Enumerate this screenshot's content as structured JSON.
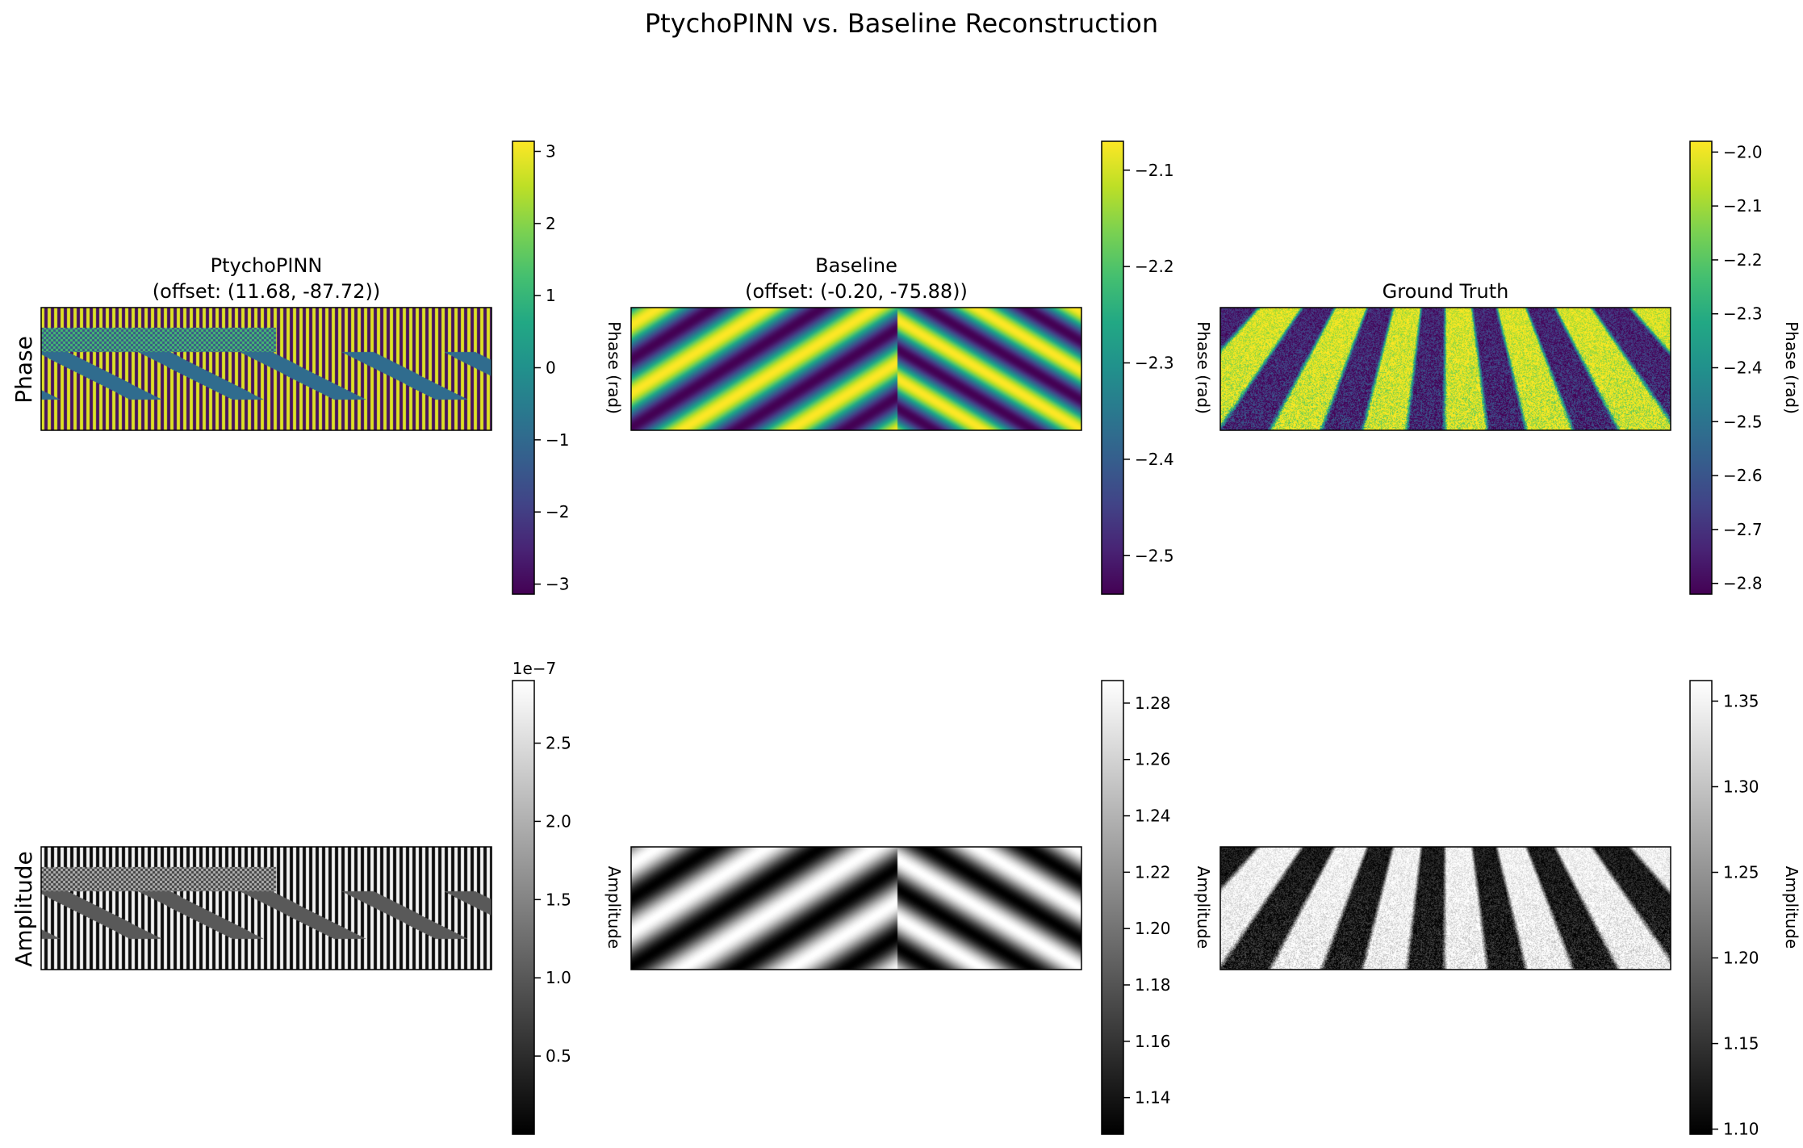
{
  "suptitle": "PtychoPINN vs. Baseline Reconstruction",
  "row_labels": [
    "Phase",
    "Amplitude"
  ],
  "chart_data": [
    {
      "type": "heatmap",
      "panel": "phase-ptychopinn",
      "title": "PtychoPINN",
      "subtitle": "(offset: (11.68, -87.72))",
      "colormap": "viridis",
      "colorbar_label": "Phase (rad)",
      "range": [
        -3.14,
        3.14
      ],
      "ticks": [
        -3,
        -2,
        -1,
        0,
        1,
        2,
        3
      ],
      "tick_labels": [
        "−3",
        "−2",
        "−1",
        "0",
        "1",
        "2",
        "3"
      ],
      "offset_label": "",
      "pattern": "ptycho"
    },
    {
      "type": "heatmap",
      "panel": "phase-baseline",
      "title": "Baseline",
      "subtitle": "(offset: (-0.20, -75.88))",
      "colormap": "viridis",
      "colorbar_label": "Phase (rad)",
      "range": [
        -2.54,
        -2.07
      ],
      "ticks": [
        -2.5,
        -2.4,
        -2.3,
        -2.2,
        -2.1
      ],
      "tick_labels": [
        "−2.5",
        "−2.4",
        "−2.3",
        "−2.2",
        "−2.1"
      ],
      "offset_label": "",
      "pattern": "baseline"
    },
    {
      "type": "heatmap",
      "panel": "phase-ground-truth",
      "title": "Ground Truth",
      "subtitle": "",
      "colormap": "viridis",
      "colorbar_label": "Phase (rad)",
      "range": [
        -2.82,
        -1.98
      ],
      "ticks": [
        -2.8,
        -2.7,
        -2.6,
        -2.5,
        -2.4,
        -2.3,
        -2.2,
        -2.1,
        -2.0
      ],
      "tick_labels": [
        "−2.8",
        "−2.7",
        "−2.6",
        "−2.5",
        "−2.4",
        "−2.3",
        "−2.2",
        "−2.1",
        "−2.0"
      ],
      "offset_label": "",
      "pattern": "truth"
    },
    {
      "type": "heatmap",
      "panel": "amplitude-ptychopinn",
      "title": "",
      "subtitle": "",
      "colormap": "gray",
      "colorbar_label": "Amplitude",
      "range": [
        0.0,
        2.9
      ],
      "ticks": [
        0.5,
        1.0,
        1.5,
        2.0,
        2.5
      ],
      "tick_labels": [
        "0.5",
        "1.0",
        "1.5",
        "2.0",
        "2.5"
      ],
      "offset_label": "1e−7",
      "pattern": "ptycho"
    },
    {
      "type": "heatmap",
      "panel": "amplitude-baseline",
      "title": "",
      "subtitle": "",
      "colormap": "gray",
      "colorbar_label": "Amplitude",
      "range": [
        1.127,
        1.288
      ],
      "ticks": [
        1.14,
        1.16,
        1.18,
        1.2,
        1.22,
        1.24,
        1.26,
        1.28
      ],
      "tick_labels": [
        "1.14",
        "1.16",
        "1.18",
        "1.20",
        "1.22",
        "1.24",
        "1.26",
        "1.28"
      ],
      "offset_label": "",
      "pattern": "baseline"
    },
    {
      "type": "heatmap",
      "panel": "amplitude-ground-truth",
      "title": "",
      "subtitle": "",
      "colormap": "gray",
      "colorbar_label": "Amplitude",
      "range": [
        1.097,
        1.362
      ],
      "ticks": [
        1.1,
        1.15,
        1.2,
        1.25,
        1.3,
        1.35
      ],
      "tick_labels": [
        "1.10",
        "1.15",
        "1.20",
        "1.25",
        "1.30",
        "1.35"
      ],
      "offset_label": "",
      "pattern": "truth"
    }
  ]
}
